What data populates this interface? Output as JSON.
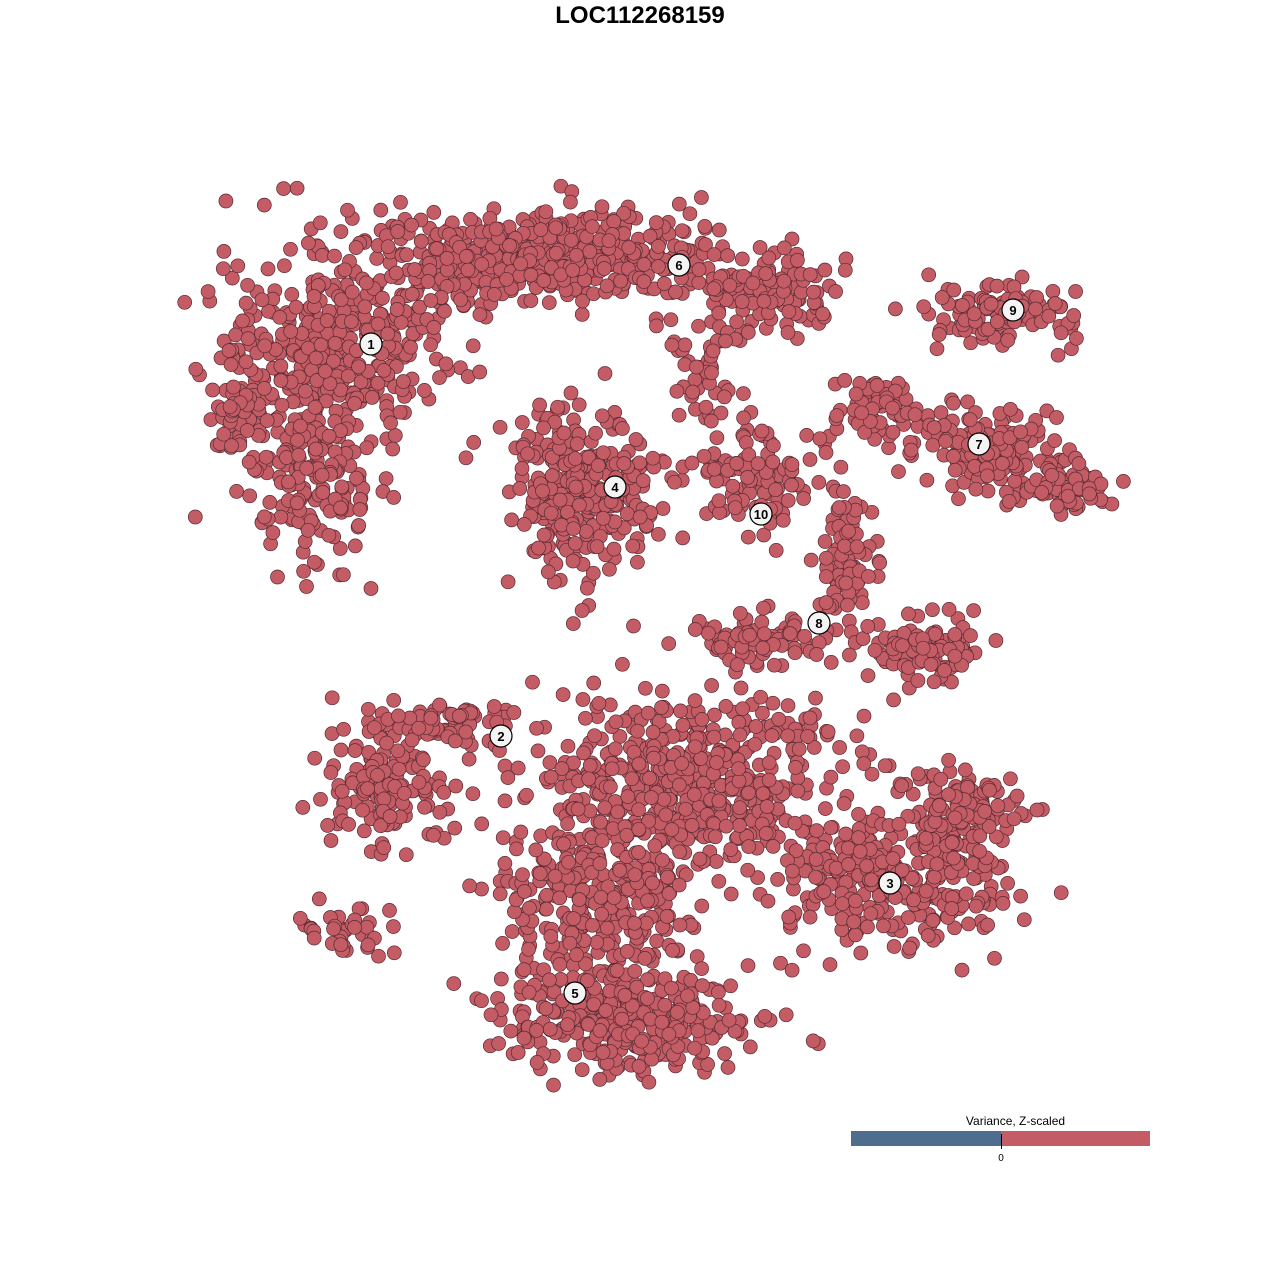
{
  "chart_data": {
    "type": "scatter",
    "title": "LOC112268159",
    "xlabel": "",
    "ylabel": "",
    "grid": false,
    "axes_visible": false,
    "point_color": "#c45c66",
    "point_edge_color": "#5a2a30",
    "cluster_labels": [
      "1",
      "2",
      "3",
      "4",
      "5",
      "6",
      "7",
      "8",
      "9",
      "10"
    ],
    "legend": {
      "title": "Variance, Z-scaled",
      "placement": "bottom-right",
      "type": "colorbar",
      "low_color": "#4f6d8f",
      "high_color": "#c45c66",
      "ticks": [
        "0"
      ]
    }
  }
}
